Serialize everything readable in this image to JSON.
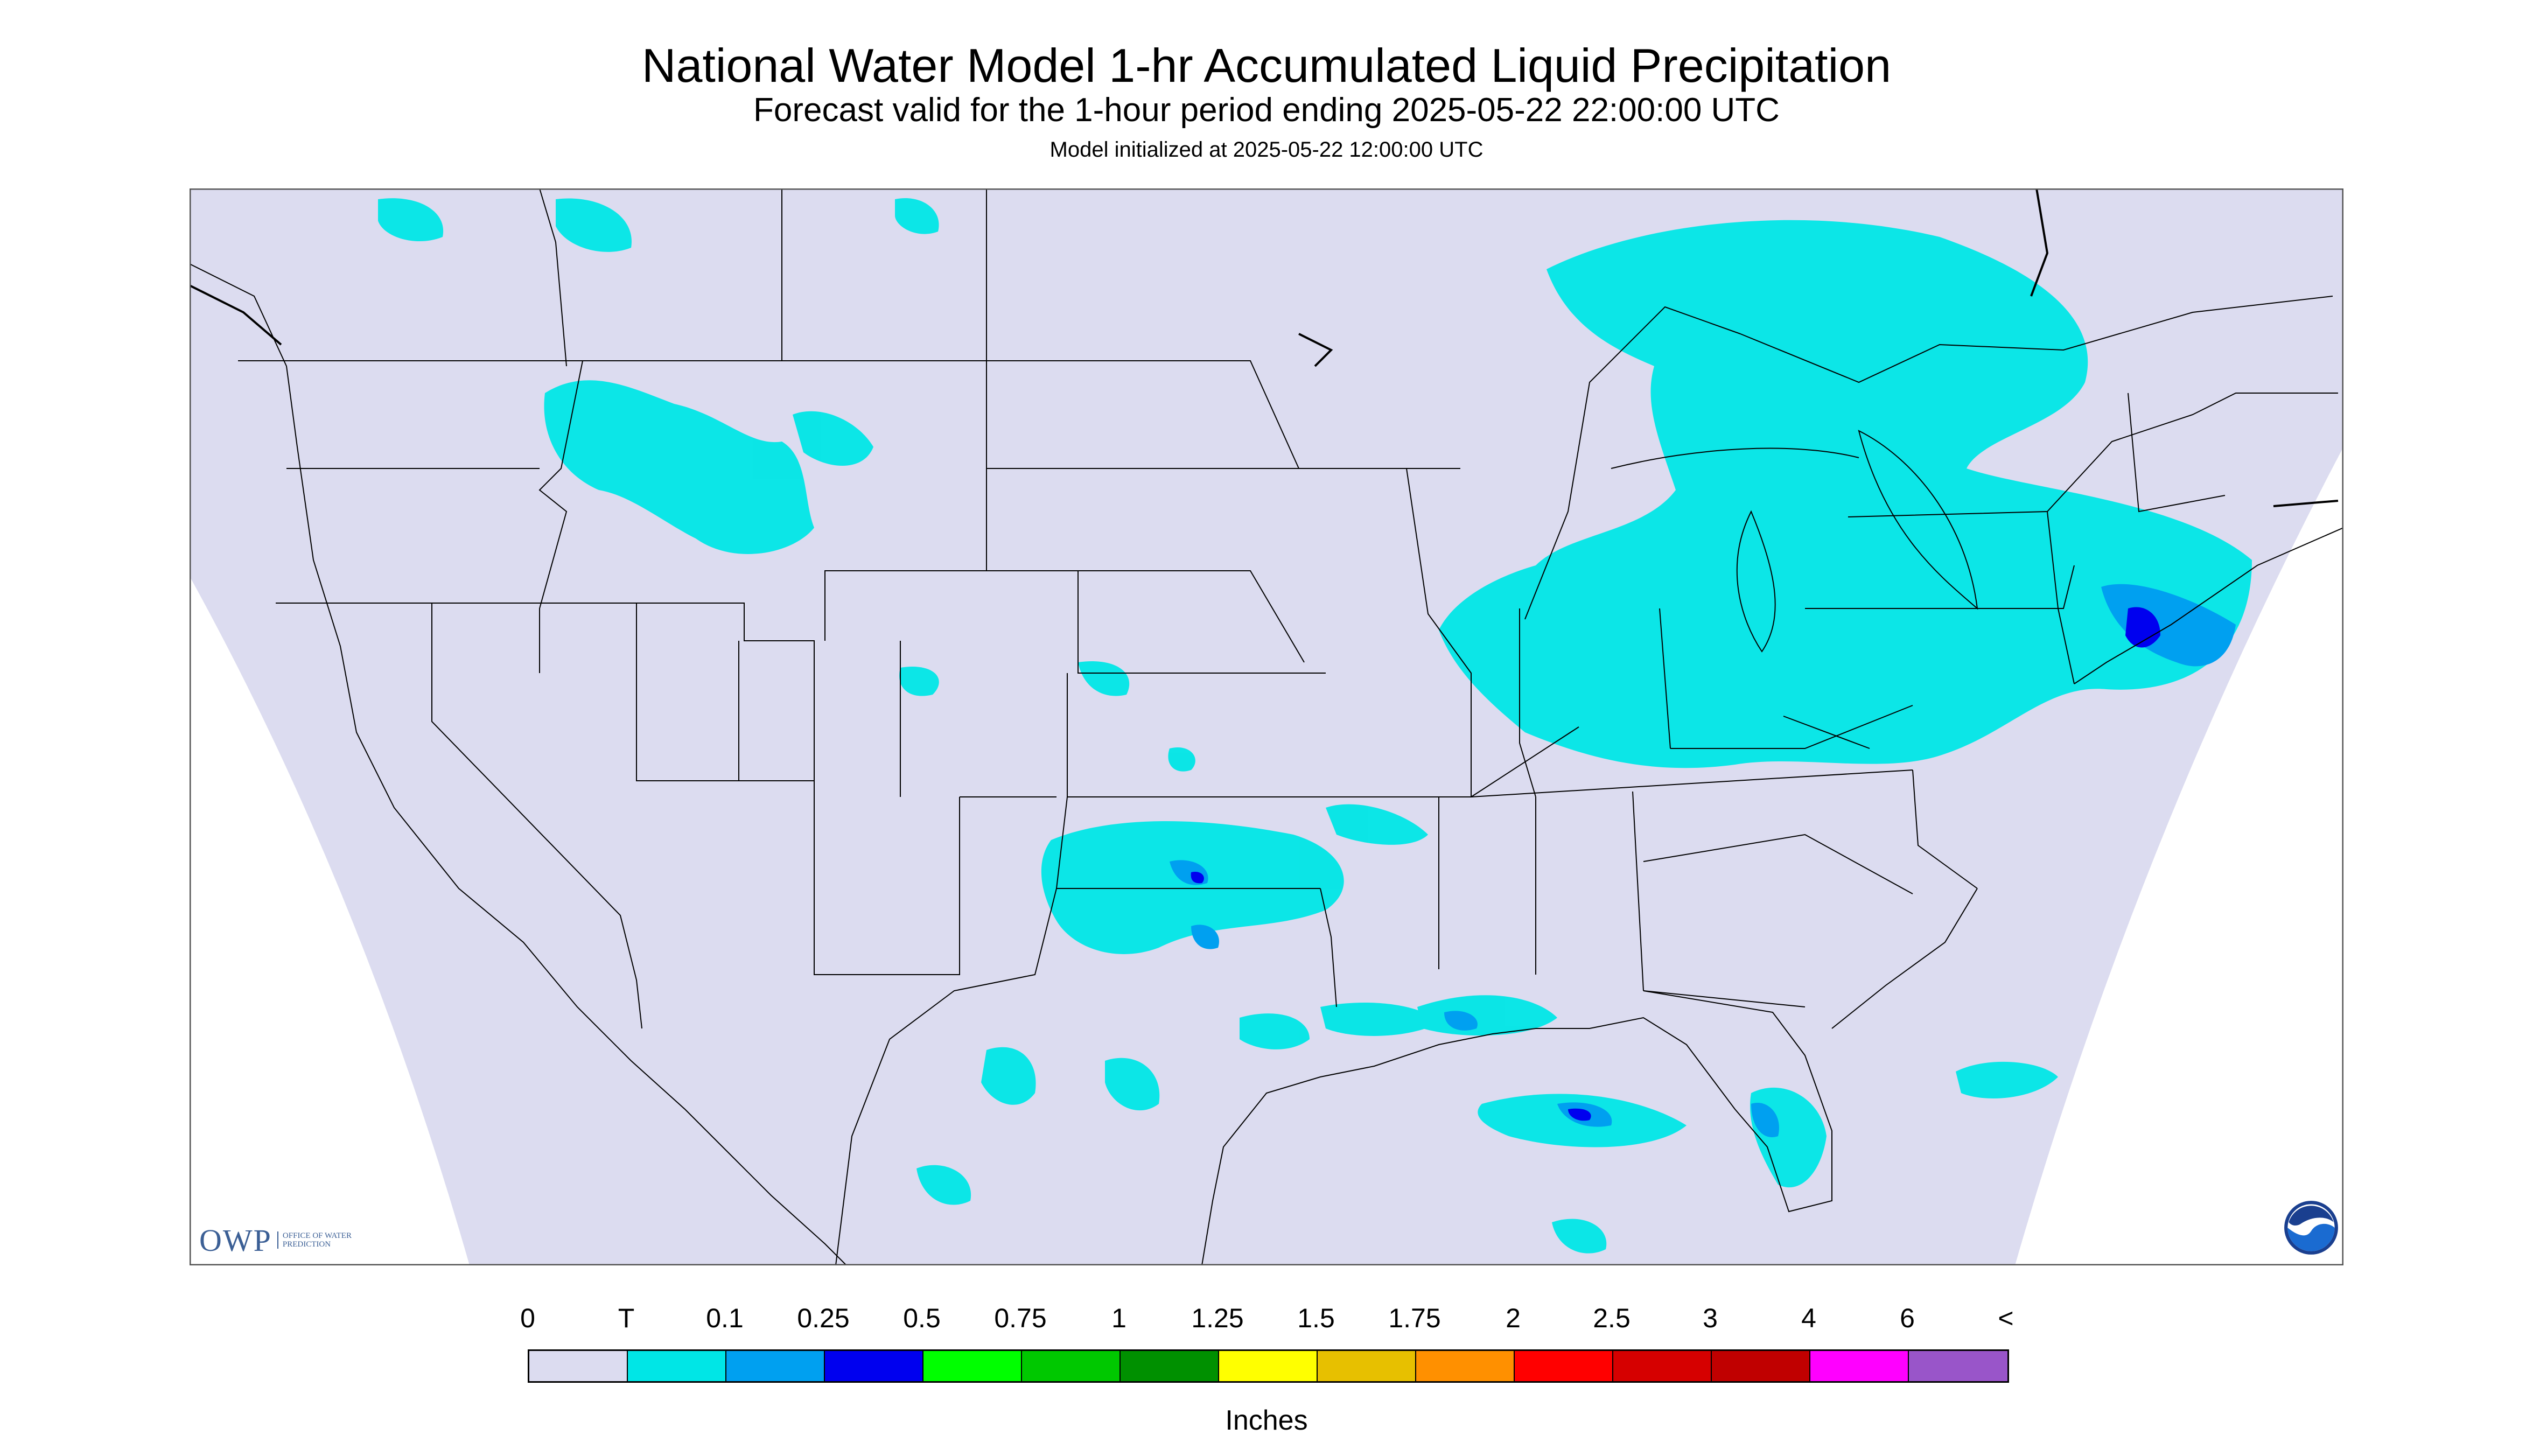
{
  "header": {
    "title": "National Water Model 1-hr Accumulated Liquid Precipitation",
    "subtitle": "Forecast valid for the 1-hour period ending 2025-05-22 22:00:00 UTC",
    "init": "Model initialized at 2025-05-22 12:00:00 UTC"
  },
  "legend": {
    "tick_labels": [
      "0",
      "T",
      "0.1",
      "0.25",
      "0.5",
      "0.75",
      "1",
      "1.25",
      "1.5",
      "1.75",
      "2",
      "2.5",
      "3",
      "4",
      "6",
      "<"
    ],
    "colors": [
      "#dcdcf0",
      "#00e6e6",
      "#00a0f0",
      "#0000ef",
      "#00ff00",
      "#00c800",
      "#009000",
      "#ffff00",
      "#e7c000",
      "#ff9000",
      "#ff0000",
      "#d60000",
      "#c00000",
      "#ff00ff",
      "#9955c9"
    ],
    "units": "Inches"
  },
  "map": {
    "background_color": "#dcdcf0",
    "outside_domain_color": "#ffffff",
    "boundary_color": "#000000"
  },
  "logos": {
    "owp_mark": "OWP",
    "owp_text": "Office of Water Prediction",
    "noaa_icon": "noaa-logo-icon"
  }
}
